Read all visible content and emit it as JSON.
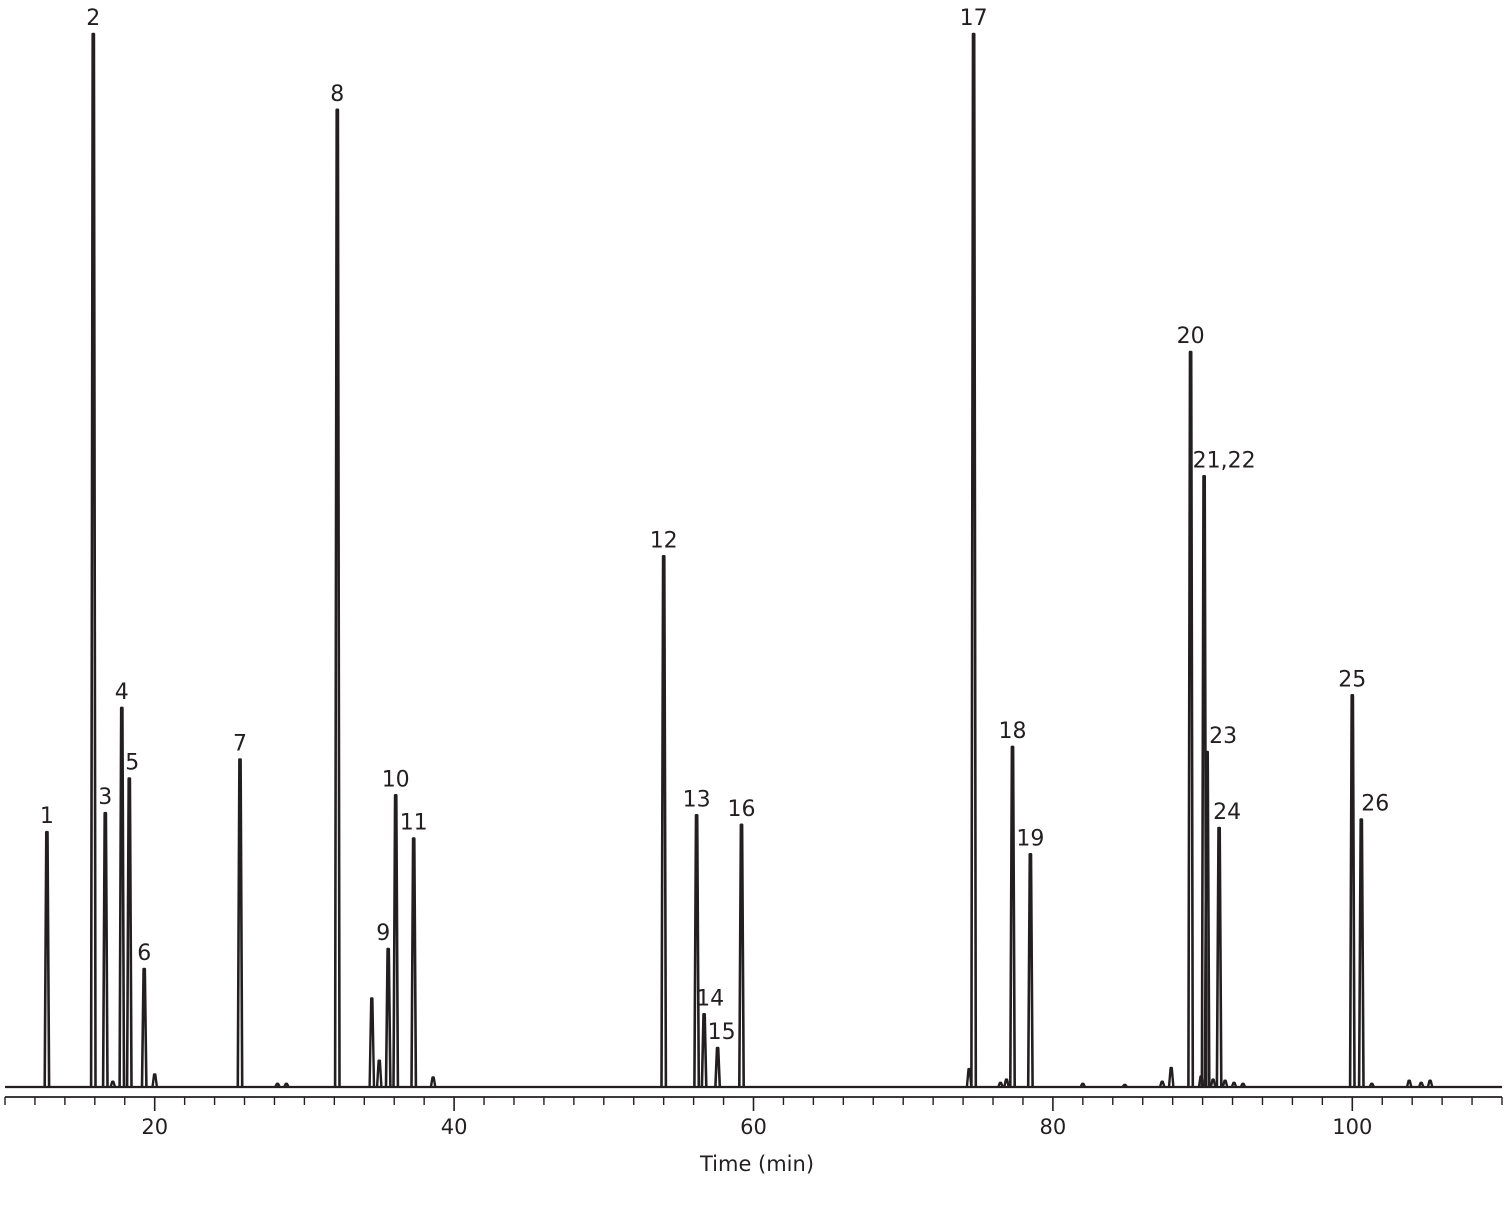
{
  "chart_data": {
    "type": "line",
    "title": "",
    "xlabel": "Time (min)",
    "ylabel": "",
    "xlim": [
      10,
      110
    ],
    "ylim": [
      0,
      1
    ],
    "grid": false,
    "legend": "none",
    "line_color": "#231f20",
    "x_ticks": [
      {
        "value": 20,
        "label": "20"
      },
      {
        "value": 40,
        "label": "40"
      },
      {
        "value": 60,
        "label": "60"
      },
      {
        "value": 80,
        "label": "80"
      },
      {
        "value": 100,
        "label": "100"
      }
    ],
    "minor_tick_step": 2,
    "peaks": [
      {
        "label": "1",
        "x": 12.8,
        "y": 0.242
      },
      {
        "label": "2",
        "x": 15.9,
        "y": 1.0
      },
      {
        "label": "3",
        "x": 16.7,
        "y": 0.26
      },
      {
        "label": "4",
        "x": 17.8,
        "y": 0.36
      },
      {
        "label": "5",
        "x": 18.3,
        "y": 0.293
      },
      {
        "label": "6",
        "x": 19.3,
        "y": 0.112
      },
      {
        "label": "7",
        "x": 25.7,
        "y": 0.311
      },
      {
        "label": "8",
        "x": 32.2,
        "y": 0.928
      },
      {
        "label": "9",
        "x": 35.6,
        "y": 0.131
      },
      {
        "label": "10",
        "x": 36.1,
        "y": 0.277
      },
      {
        "label": "11",
        "x": 37.3,
        "y": 0.236
      },
      {
        "label": "12",
        "x": 54.0,
        "y": 0.504
      },
      {
        "label": "13",
        "x": 56.2,
        "y": 0.258
      },
      {
        "label": "14",
        "x": 56.7,
        "y": 0.069
      },
      {
        "label": "15",
        "x": 57.6,
        "y": 0.037
      },
      {
        "label": "16",
        "x": 59.2,
        "y": 0.249
      },
      {
        "label": "17",
        "x": 74.7,
        "y": 1.0
      },
      {
        "label": "18",
        "x": 77.3,
        "y": 0.323
      },
      {
        "label": "19",
        "x": 78.5,
        "y": 0.221
      },
      {
        "label": "20",
        "x": 89.2,
        "y": 0.698
      },
      {
        "label": "21,22",
        "x": 90.1,
        "y": 0.58
      },
      {
        "label": "23",
        "x": 90.3,
        "y": 0.318
      },
      {
        "label": "24",
        "x": 91.1,
        "y": 0.246
      },
      {
        "label": "25",
        "x": 100.0,
        "y": 0.372
      },
      {
        "label": "26",
        "x": 100.6,
        "y": 0.254
      }
    ],
    "minor_peaks": [
      {
        "x": 17.2,
        "y": 0.005
      },
      {
        "x": 20.0,
        "y": 0.012
      },
      {
        "x": 28.2,
        "y": 0.003
      },
      {
        "x": 28.8,
        "y": 0.003
      },
      {
        "x": 34.5,
        "y": 0.084
      },
      {
        "x": 35.0,
        "y": 0.025
      },
      {
        "x": 38.6,
        "y": 0.009
      },
      {
        "x": 74.4,
        "y": 0.017
      },
      {
        "x": 76.5,
        "y": 0.004
      },
      {
        "x": 76.9,
        "y": 0.007
      },
      {
        "x": 82.0,
        "y": 0.003
      },
      {
        "x": 84.8,
        "y": 0.002
      },
      {
        "x": 87.3,
        "y": 0.005
      },
      {
        "x": 87.9,
        "y": 0.018
      },
      {
        "x": 89.9,
        "y": 0.01
      },
      {
        "x": 90.7,
        "y": 0.007
      },
      {
        "x": 91.5,
        "y": 0.006
      },
      {
        "x": 92.1,
        "y": 0.004
      },
      {
        "x": 92.7,
        "y": 0.003
      },
      {
        "x": 101.3,
        "y": 0.003
      },
      {
        "x": 103.8,
        "y": 0.006
      },
      {
        "x": 104.6,
        "y": 0.004
      },
      {
        "x": 105.2,
        "y": 0.006
      }
    ]
  }
}
